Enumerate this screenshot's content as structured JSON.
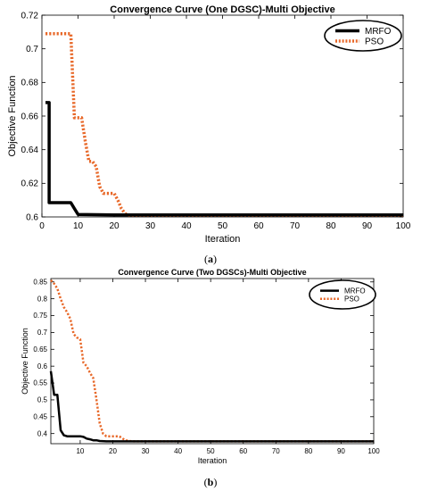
{
  "chart_data": [
    {
      "type": "line",
      "title": "Convergence Curve (One DGSC)-Multi Objective",
      "xlabel": "Iteration",
      "ylabel": "Objective Function",
      "xlim": [
        0,
        100
      ],
      "ylim": [
        0.6,
        0.72
      ],
      "xticks": [
        "0",
        "10",
        "20",
        "30",
        "40",
        "50",
        "60",
        "70",
        "80",
        "90",
        "100"
      ],
      "yticks": [
        "0.6",
        "0.62",
        "0.64",
        "0.66",
        "0.68",
        "0.7",
        "0.72"
      ],
      "legend_position": "top-right",
      "caption": "a",
      "series": [
        {
          "name": "MRFO",
          "color": "#000000",
          "style": "solid",
          "x": [
            1,
            2,
            2,
            7,
            8,
            9,
            10,
            20,
            100
          ],
          "y": [
            0.668,
            0.668,
            0.6085,
            0.6085,
            0.6085,
            0.605,
            0.6015,
            0.6012,
            0.6012
          ]
        },
        {
          "name": "PSO",
          "color": "#e8692a",
          "style": "dotted",
          "x": [
            1,
            8,
            9,
            11,
            12,
            13,
            14,
            15,
            16,
            17,
            18,
            20,
            21,
            22,
            23,
            24,
            100
          ],
          "y": [
            0.709,
            0.709,
            0.659,
            0.659,
            0.645,
            0.633,
            0.633,
            0.63,
            0.618,
            0.614,
            0.614,
            0.614,
            0.61,
            0.605,
            0.602,
            0.601,
            0.601
          ]
        }
      ]
    },
    {
      "type": "line",
      "title": "Convergence Curve (Two DGSCs)-Multi Objective",
      "xlabel": "Iteration",
      "ylabel": "Objective Function",
      "xlim": [
        1,
        100
      ],
      "ylim": [
        0.37,
        0.86
      ],
      "xticks": [
        "10",
        "20",
        "30",
        "40",
        "50",
        "60",
        "70",
        "80",
        "90",
        "100"
      ],
      "yticks": [
        "0.4",
        "0.45",
        "0.5",
        "0.55",
        "0.6",
        "0.65",
        "0.7",
        "0.75",
        "0.8",
        "0.85"
      ],
      "legend_position": "top-right",
      "caption": "b",
      "series": [
        {
          "name": "MRFO",
          "color": "#000000",
          "style": "solid",
          "x": [
            1,
            2,
            3,
            4,
            5,
            6,
            7,
            8,
            9,
            10,
            11,
            12,
            13,
            14,
            15,
            16,
            18,
            20,
            100
          ],
          "y": [
            0.585,
            0.515,
            0.515,
            0.41,
            0.395,
            0.392,
            0.392,
            0.392,
            0.392,
            0.392,
            0.39,
            0.385,
            0.383,
            0.38,
            0.38,
            0.378,
            0.377,
            0.377,
            0.377
          ]
        },
        {
          "name": "PSO",
          "color": "#e8692a",
          "style": "dotted",
          "x": [
            1,
            2,
            3,
            4,
            5,
            6,
            7,
            8,
            9,
            10,
            11,
            12,
            13,
            14,
            15,
            16,
            17,
            18,
            19,
            20,
            21,
            22,
            23,
            24,
            25,
            26,
            27,
            100
          ],
          "y": [
            0.855,
            0.845,
            0.83,
            0.8,
            0.775,
            0.76,
            0.74,
            0.695,
            0.685,
            0.68,
            0.61,
            0.6,
            0.58,
            0.565,
            0.5,
            0.43,
            0.4,
            0.392,
            0.392,
            0.392,
            0.392,
            0.392,
            0.385,
            0.38,
            0.378,
            0.377,
            0.377,
            0.377
          ]
        }
      ]
    }
  ]
}
